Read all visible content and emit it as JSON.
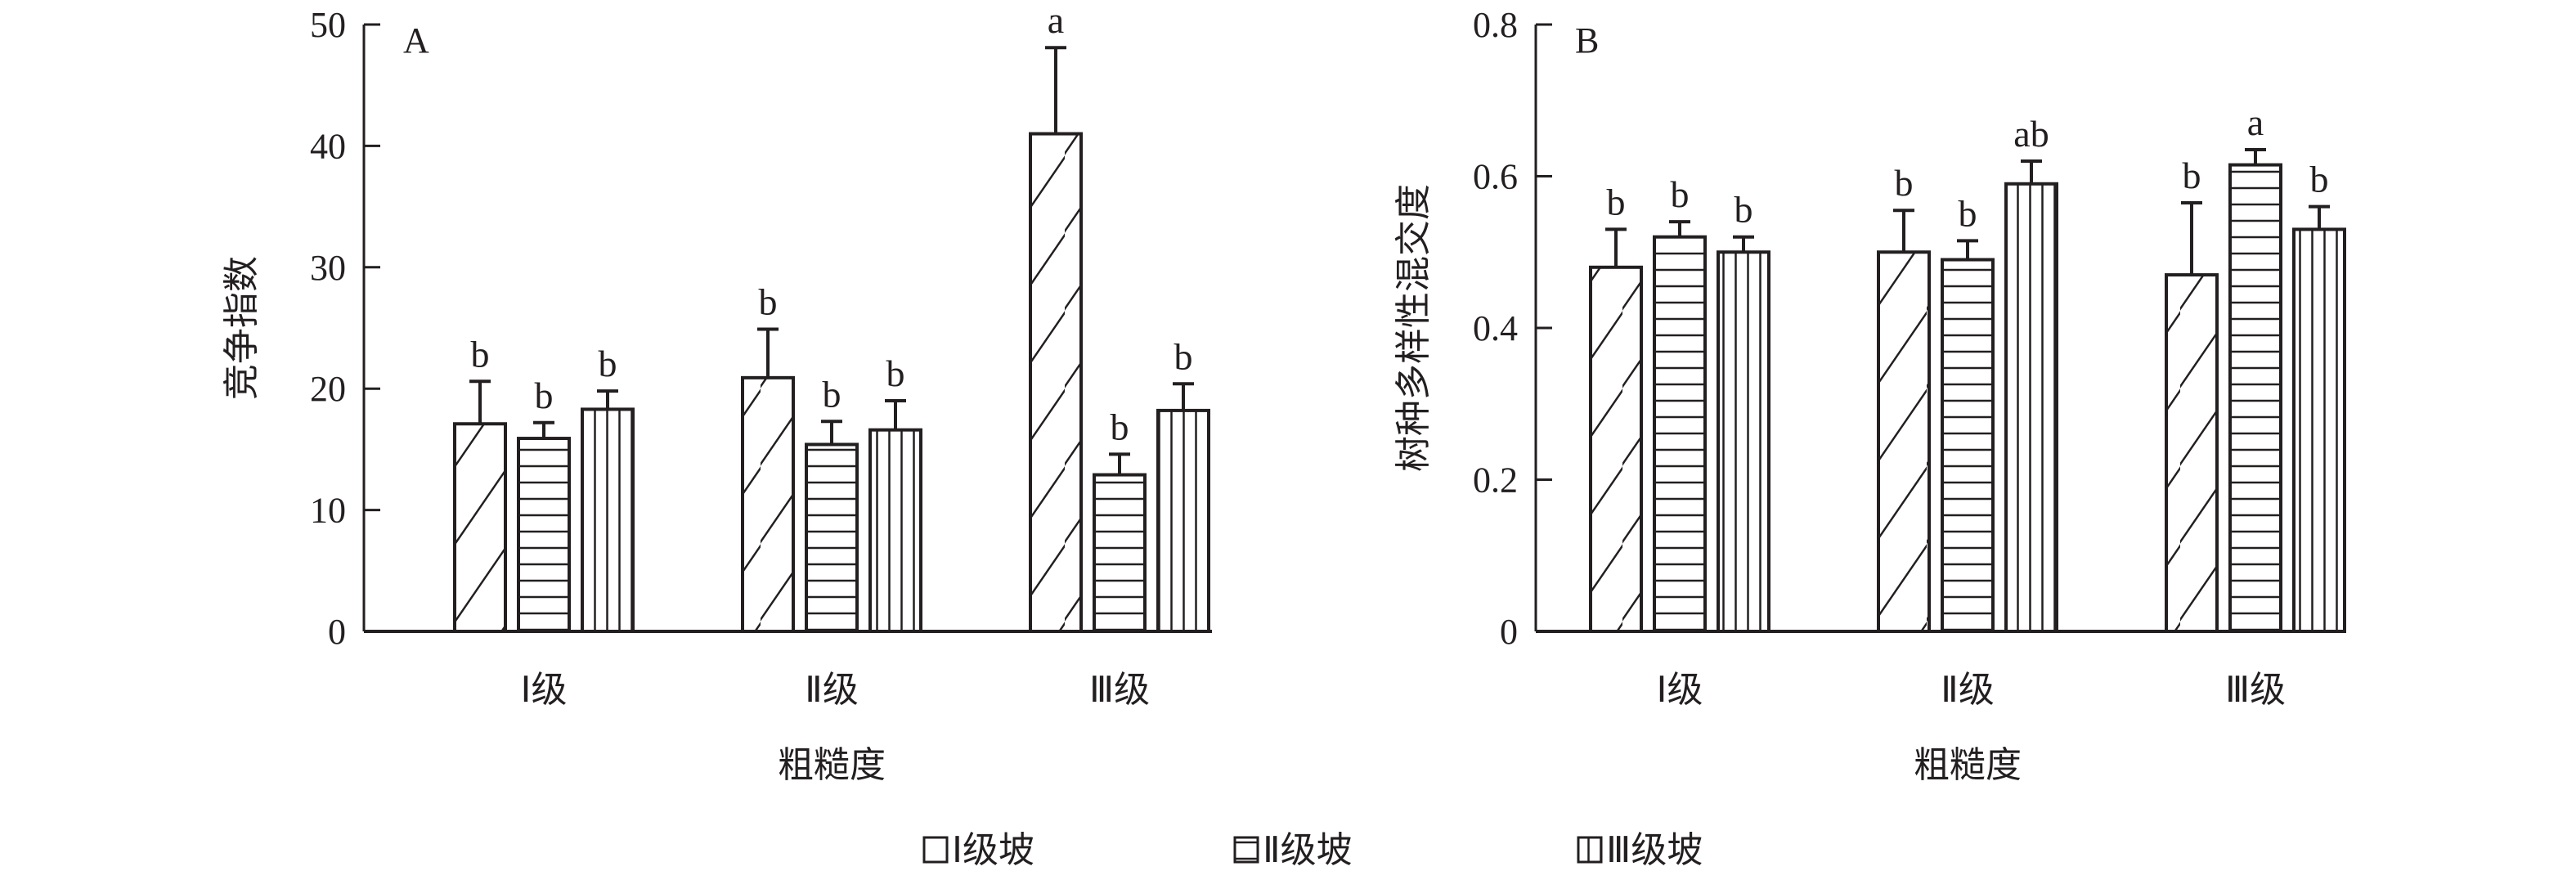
{
  "chart_data": [
    {
      "type": "bar",
      "panel_label": "A",
      "title": "",
      "xlabel": "粗糙度",
      "ylabel": "竞争指数",
      "ylim": [
        0,
        50
      ],
      "yticks": [
        "0",
        "10",
        "20",
        "30",
        "40",
        "50"
      ],
      "categories": [
        "Ⅰ级",
        "Ⅱ级",
        "Ⅲ级"
      ],
      "series": [
        {
          "name": "Ⅰ级坡",
          "values": [
            17.1,
            20.9,
            41.0
          ],
          "errors": [
            3.5,
            4.0,
            7.1
          ],
          "letters": [
            "b",
            "b",
            "a"
          ]
        },
        {
          "name": "Ⅱ级坡",
          "values": [
            15.9,
            15.4,
            12.9
          ],
          "errors": [
            1.3,
            1.9,
            1.7
          ],
          "letters": [
            "b",
            "b",
            "b"
          ]
        },
        {
          "name": "Ⅲ级坡",
          "values": [
            18.3,
            16.6,
            18.2
          ],
          "errors": [
            1.5,
            2.4,
            2.2
          ],
          "letters": [
            "b",
            "b",
            "b"
          ]
        }
      ]
    },
    {
      "type": "bar",
      "panel_label": "B",
      "title": "",
      "xlabel": "粗糙度",
      "ylabel": "树种多样性混交度",
      "ylim": [
        0,
        0.8
      ],
      "yticks": [
        "0",
        "0.2",
        "0.4",
        "0.6",
        "0.8"
      ],
      "categories": [
        "Ⅰ级",
        "Ⅱ级",
        "Ⅲ级"
      ],
      "series": [
        {
          "name": "Ⅰ级坡",
          "values": [
            0.48,
            0.5,
            0.47
          ],
          "errors": [
            0.05,
            0.055,
            0.095
          ],
          "letters": [
            "b",
            "b",
            "b"
          ]
        },
        {
          "name": "Ⅱ级坡",
          "values": [
            0.52,
            0.49,
            0.615
          ],
          "errors": [
            0.02,
            0.025,
            0.02
          ],
          "letters": [
            "b",
            "b",
            "a"
          ]
        },
        {
          "name": "Ⅲ级坡",
          "values": [
            0.5,
            0.59,
            0.53
          ],
          "errors": [
            0.02,
            0.03,
            0.03
          ],
          "letters": [
            "b",
            "ab",
            "b"
          ]
        }
      ]
    }
  ],
  "legend": {
    "placement": "bottom-center",
    "items": [
      "Ⅰ级坡",
      "Ⅱ级坡",
      "Ⅲ级坡"
    ]
  }
}
